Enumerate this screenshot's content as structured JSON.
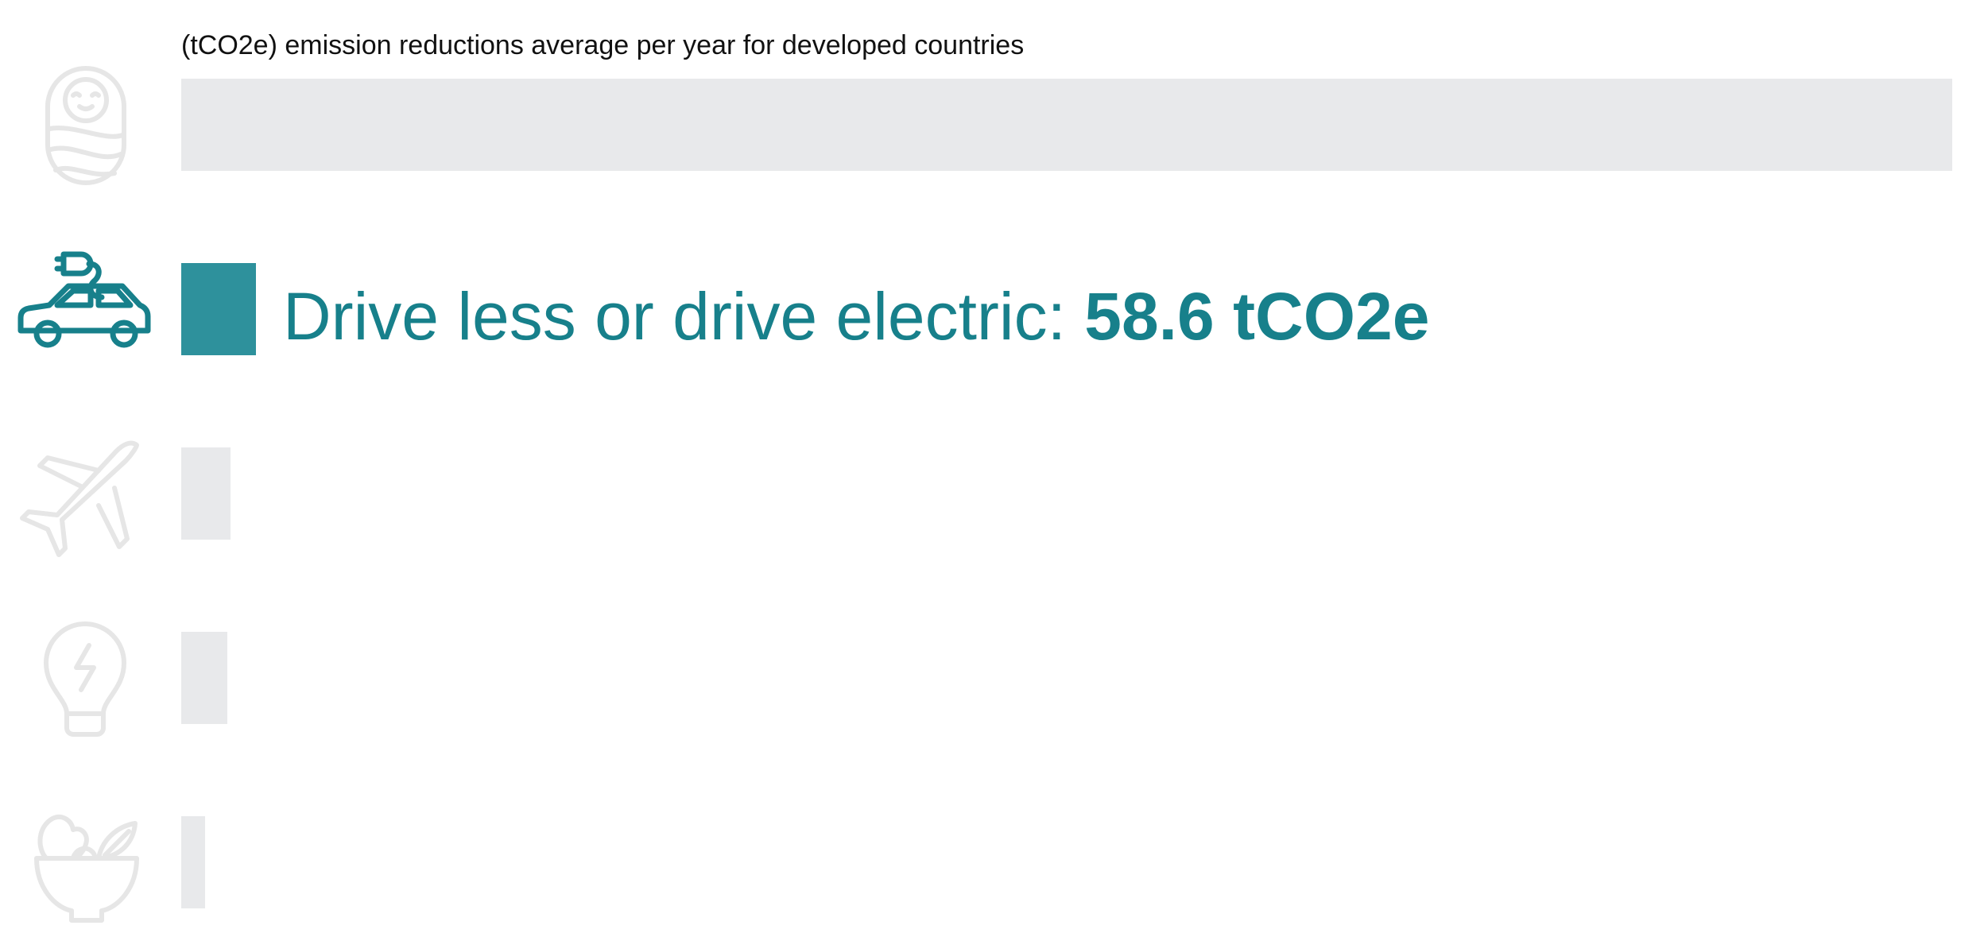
{
  "chart_data": {
    "type": "bar",
    "orientation": "horizontal",
    "title": "(tCO2e) emission reductions average per year for developed countries",
    "categories": [
      "Have one fewer child",
      "Drive less or drive electric",
      "Avoid one transatlantic flight",
      "Buy green energy",
      "Eat a plant-based diet"
    ],
    "values": [
      1392,
      58.6,
      39,
      36,
      19
    ],
    "highlight_index": 1,
    "label_prefix": "Drive less or drive electric: ",
    "label_value": "58.6 tCO2e",
    "icons": [
      "baby-icon",
      "electric-car-icon",
      "airplane-icon",
      "lightbulb-icon",
      "salad-bowl-icon"
    ],
    "xlim": [
      0,
      1392
    ],
    "colors": {
      "highlight": "#2E919C",
      "highlight_text": "#17808B",
      "muted_bar": "#E8E9EB",
      "muted_icon": "#E6E6E6",
      "title_text": "#111111"
    }
  }
}
